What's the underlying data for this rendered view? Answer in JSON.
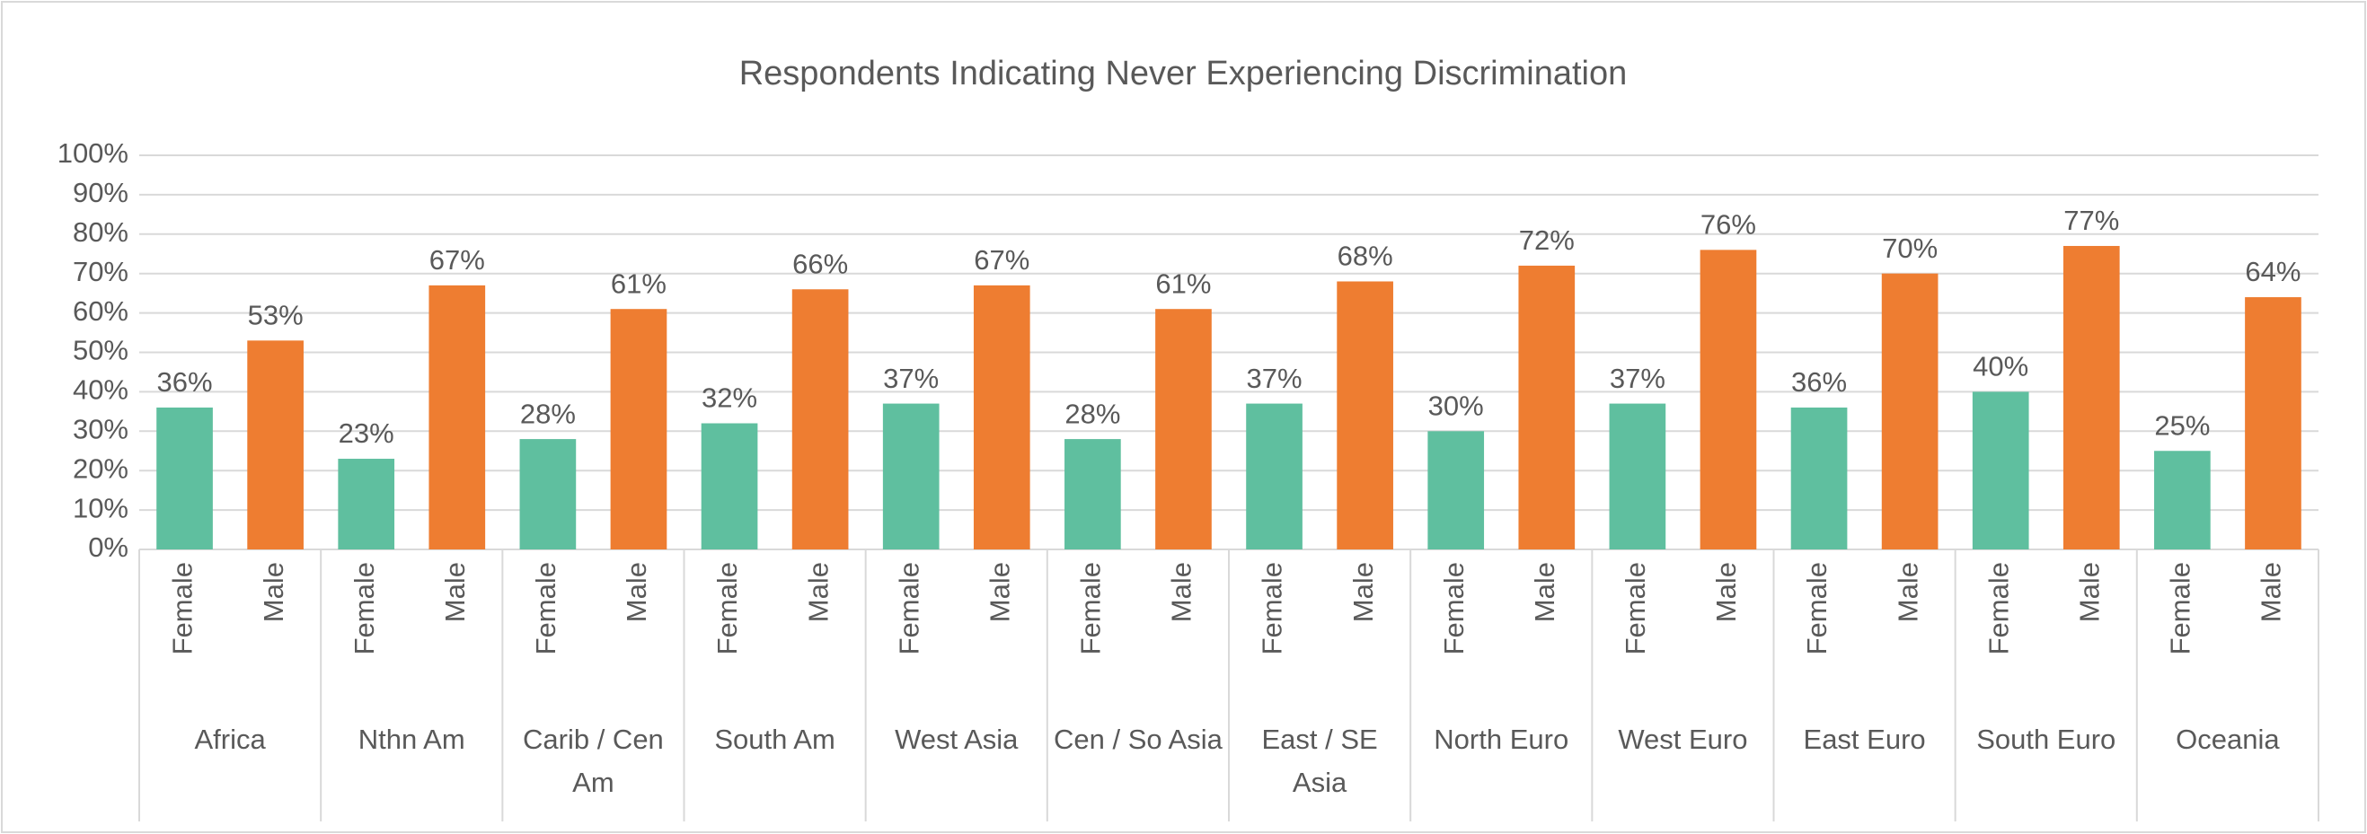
{
  "chart_data": {
    "type": "bar",
    "title": "Respondents Indicating Never Experiencing Discrimination",
    "categories": [
      "Africa",
      "Nthn Am",
      "Carib / Cen Am",
      "South Am",
      "West Asia",
      "Cen / So Asia",
      "East / SE Asia",
      "North Euro",
      "West Euro",
      "East Euro",
      "South Euro",
      "Oceania"
    ],
    "series": [
      {
        "name": "Female",
        "color": "#5fbf9f",
        "values": [
          36,
          23,
          28,
          32,
          37,
          28,
          37,
          30,
          37,
          36,
          40,
          25
        ],
        "value_labels": [
          "36%",
          "23%",
          "28%",
          "32%",
          "37%",
          "28%",
          "37%",
          "30%",
          "37%",
          "36%",
          "40%",
          "25%"
        ]
      },
      {
        "name": "Male",
        "color": "#ee7d31",
        "values": [
          53,
          67,
          61,
          66,
          67,
          61,
          68,
          72,
          76,
          70,
          77,
          64
        ],
        "value_labels": [
          "53%",
          "67%",
          "61%",
          "66%",
          "67%",
          "61%",
          "68%",
          "72%",
          "76%",
          "70%",
          "77%",
          "64%"
        ]
      }
    ],
    "ylim": [
      0,
      100
    ],
    "yticks": [
      {
        "value": 0,
        "label": "0%"
      },
      {
        "value": 10,
        "label": "10%"
      },
      {
        "value": 20,
        "label": "20%"
      },
      {
        "value": 30,
        "label": "30%"
      },
      {
        "value": 40,
        "label": "40%"
      },
      {
        "value": 50,
        "label": "50%"
      },
      {
        "value": 60,
        "label": "60%"
      },
      {
        "value": 70,
        "label": "70%"
      },
      {
        "value": 80,
        "label": "80%"
      },
      {
        "value": 90,
        "label": "90%"
      },
      {
        "value": 100,
        "label": "100%"
      }
    ],
    "grid": true
  }
}
